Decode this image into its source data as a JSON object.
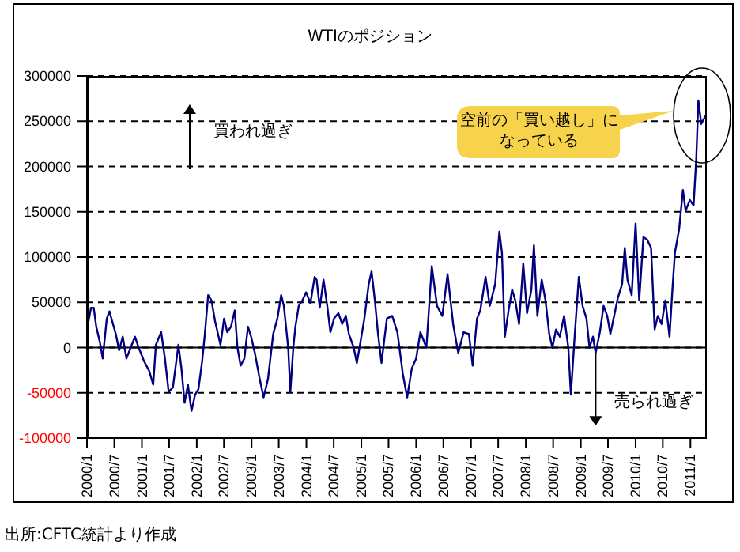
{
  "chart_data": {
    "type": "line",
    "title": "WTIのポジション",
    "x": [
      "2000-01-01",
      "2000-01-28",
      "2000-02-15",
      "2000-03-03",
      "2000-03-27",
      "2000-04-15",
      "2000-05-12",
      "2000-05-30",
      "2000-06-17",
      "2000-07-11",
      "2000-08-02",
      "2000-08-26",
      "2000-09-20",
      "2000-10-18",
      "2000-11-16",
      "2000-12-10",
      "2001-01-15",
      "2001-02-19",
      "2001-03-17",
      "2001-04-04",
      "2001-05-09",
      "2001-06-03",
      "2001-06-28",
      "2001-07-26",
      "2001-09-01",
      "2001-09-21",
      "2001-10-12",
      "2001-11-03",
      "2001-11-27",
      "2001-12-21",
      "2002-01-12",
      "2002-02-06",
      "2002-02-24",
      "2002-03-18",
      "2002-04-09",
      "2002-05-03",
      "2002-06-08",
      "2002-07-02",
      "2002-07-23",
      "2002-08-17",
      "2002-09-11",
      "2002-09-29",
      "2002-10-20",
      "2002-11-14",
      "2002-12-08",
      "2002-12-29",
      "2003-01-23",
      "2003-02-21",
      "2003-03-22",
      "2003-04-20",
      "2003-05-25",
      "2003-06-22",
      "2003-07-17",
      "2003-08-04",
      "2003-09-02",
      "2003-09-16",
      "2003-10-06",
      "2003-10-20",
      "2003-11-11",
      "2003-12-05",
      "2003-12-30",
      "2004-01-28",
      "2004-02-25",
      "2004-03-09",
      "2004-03-30",
      "2004-04-24",
      "2004-05-19",
      "2004-06-09",
      "2004-07-03",
      "2004-08-01",
      "2004-08-26",
      "2004-09-20",
      "2004-10-10",
      "2004-11-11",
      "2004-12-02",
      "2004-12-26",
      "2005-01-21",
      "2005-02-19",
      "2005-03-10",
      "2005-04-01",
      "2005-04-21",
      "2005-05-15",
      "2005-06-20",
      "2005-07-25",
      "2005-08-29",
      "2005-10-04",
      "2005-11-02",
      "2005-12-03",
      "2006-01-01",
      "2006-01-29",
      "2006-03-10",
      "2006-04-15",
      "2006-05-20",
      "2006-06-24",
      "2006-07-29",
      "2006-09-04",
      "2006-10-08",
      "2006-11-13",
      "2006-12-18",
      "2007-01-12",
      "2007-02-10",
      "2007-03-04",
      "2007-04-08",
      "2007-05-06",
      "2007-06-11",
      "2007-07-09",
      "2007-07-26",
      "2007-08-14",
      "2007-09-08",
      "2007-10-02",
      "2007-10-23",
      "2007-11-17",
      "2007-12-15",
      "2008-01-09",
      "2008-02-07",
      "2008-02-24",
      "2008-03-18",
      "2008-04-16",
      "2008-05-11",
      "2008-06-05",
      "2008-06-26",
      "2008-07-20",
      "2008-08-14",
      "2008-09-12",
      "2008-10-10",
      "2008-10-27",
      "2008-11-21",
      "2008-12-19",
      "2009-01-13",
      "2009-02-08",
      "2009-02-28",
      "2009-03-23",
      "2009-04-10",
      "2009-05-08",
      "2009-06-02",
      "2009-06-26",
      "2009-07-17",
      "2009-08-11",
      "2009-09-05",
      "2009-10-03",
      "2009-10-21",
      "2009-11-08",
      "2009-12-06",
      "2010-01-01",
      "2010-01-25",
      "2010-02-22",
      "2010-03-20",
      "2010-04-14",
      "2010-05-08",
      "2010-05-29",
      "2010-06-23",
      "2010-07-18",
      "2010-08-15",
      "2010-09-03",
      "2010-09-20",
      "2010-10-18",
      "2010-11-12",
      "2010-11-30",
      "2010-12-28",
      "2011-01-22",
      "2011-02-09",
      "2011-02-23",
      "2011-03-14",
      "2011-04-12"
    ],
    "series": [
      {
        "color": "#000080",
        "values": [
          20000,
          44000,
          44000,
          23000,
          6000,
          -12000,
          32000,
          40000,
          29000,
          15000,
          -3000,
          12000,
          -12000,
          0,
          12000,
          0,
          -15000,
          -26000,
          -41000,
          3000,
          17000,
          -12000,
          -49000,
          -44000,
          3000,
          -23000,
          -61000,
          -41000,
          -70000,
          -52000,
          -46000,
          -15000,
          15000,
          58000,
          52000,
          29000,
          3000,
          32000,
          17000,
          23000,
          41000,
          0,
          -20000,
          -12000,
          23000,
          12000,
          -6000,
          -32000,
          -55000,
          -35000,
          15000,
          32000,
          58000,
          46000,
          0,
          -49000,
          0,
          23000,
          46000,
          52000,
          61000,
          49000,
          78000,
          75000,
          44000,
          75000,
          46000,
          17000,
          32000,
          38000,
          26000,
          35000,
          15000,
          0,
          -17000,
          6000,
          32000,
          70000,
          84000,
          52000,
          17000,
          -17000,
          32000,
          35000,
          17000,
          -29000,
          -55000,
          -23000,
          -12000,
          17000,
          0,
          90000,
          46000,
          35000,
          81000,
          26000,
          -6000,
          17000,
          15000,
          -20000,
          32000,
          41000,
          78000,
          46000,
          70000,
          128000,
          105000,
          12000,
          41000,
          64000,
          52000,
          26000,
          93000,
          38000,
          64000,
          113000,
          35000,
          75000,
          52000,
          15000,
          0,
          20000,
          12000,
          35000,
          0,
          -52000,
          12000,
          78000,
          46000,
          32000,
          0,
          12000,
          -6000,
          17000,
          46000,
          35000,
          15000,
          35000,
          55000,
          70000,
          110000,
          75000,
          58000,
          137000,
          52000,
          122000,
          119000,
          110000,
          20000,
          35000,
          26000,
          52000,
          12000,
          64000,
          105000,
          131000,
          174000,
          151000,
          163000,
          157000,
          209000,
          273000,
          247000,
          256000
        ]
      }
    ],
    "xlim": [
      "2000-01-01",
      "2011-04-20"
    ],
    "xticks": [
      {
        "value": "2000-01",
        "label": "2000/1"
      },
      {
        "value": "2000-07",
        "label": "2000/7"
      },
      {
        "value": "2001-01",
        "label": "2001/1"
      },
      {
        "value": "2001-07",
        "label": "2001/7"
      },
      {
        "value": "2002-01",
        "label": "2002/1"
      },
      {
        "value": "2002-07",
        "label": "2002/7"
      },
      {
        "value": "2003-01",
        "label": "2003/1"
      },
      {
        "value": "2003-07",
        "label": "2003/7"
      },
      {
        "value": "2004-01",
        "label": "2004/1"
      },
      {
        "value": "2004-07",
        "label": "2004/7"
      },
      {
        "value": "2005-01",
        "label": "2005/1"
      },
      {
        "value": "2005-07",
        "label": "2005/7"
      },
      {
        "value": "2006-01",
        "label": "2006/1"
      },
      {
        "value": "2006-07",
        "label": "2006/7"
      },
      {
        "value": "2007-01",
        "label": "2007/1"
      },
      {
        "value": "2007-07",
        "label": "2007/7"
      },
      {
        "value": "2008-01",
        "label": "2008/1"
      },
      {
        "value": "2008-07",
        "label": "2008/7"
      },
      {
        "value": "2009-01",
        "label": "2009/1"
      },
      {
        "value": "2009-07",
        "label": "2009/7"
      },
      {
        "value": "2010-01",
        "label": "2010/1"
      },
      {
        "value": "2010-07",
        "label": "2010/7"
      },
      {
        "value": "2011-01",
        "label": "2011/1"
      }
    ],
    "ylim": [
      -100000,
      300000
    ],
    "yticks": [
      -100000,
      -50000,
      0,
      50000,
      100000,
      150000,
      200000,
      250000,
      300000
    ],
    "grid": "y",
    "ref_lines": [
      {
        "axis": "y",
        "value": 0,
        "color": "#000000",
        "line_style": "solid"
      }
    ],
    "annotations": [
      "買われ過ぎ",
      "空前の「買い越し」になっている",
      {
        "text": "売られ過ぎ",
        "x": "2009-04-10",
        "y": -6000
      },
      "出所:CFTC統計より作成"
    ]
  }
}
